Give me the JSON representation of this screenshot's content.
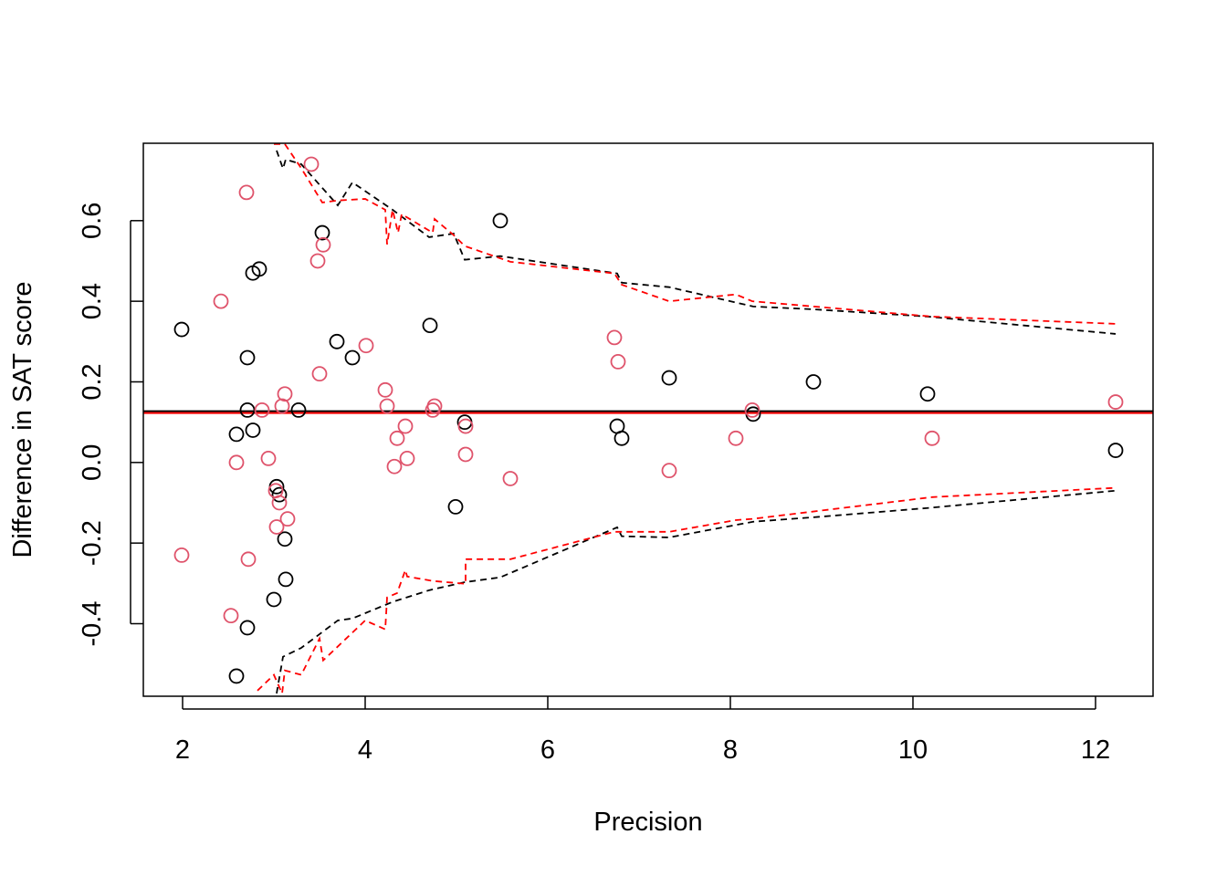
{
  "chart_data": {
    "type": "scatter",
    "xlabel": "Precision",
    "ylabel": "Difference in SAT score",
    "xlim": [
      1.57,
      12.63
    ],
    "ylim": [
      -0.58,
      0.792
    ],
    "xticks": [
      2,
      4,
      6,
      8,
      10,
      12
    ],
    "xtick_labels": [
      "2",
      "4",
      "6",
      "8",
      "10",
      "12"
    ],
    "yticks": [
      -0.4,
      -0.2,
      0.0,
      0.2,
      0.4,
      0.6
    ],
    "ytick_labels": [
      "-0.4",
      "-0.2",
      "0.0",
      "0.2",
      "0.4",
      "0.6"
    ],
    "grid": false,
    "reference_line": {
      "y": 0.125,
      "colors": [
        "#000000",
        "#FF0000"
      ]
    },
    "series": [
      {
        "color": "#000000",
        "marker": "open-circle",
        "points": [
          [
            1.99,
            0.33
          ],
          [
            2.71,
            0.26
          ],
          [
            2.71,
            0.13
          ],
          [
            2.59,
            0.07
          ],
          [
            2.77,
            0.08
          ],
          [
            2.77,
            0.47
          ],
          [
            2.84,
            0.48
          ],
          [
            3.53,
            0.57
          ],
          [
            3.69,
            0.3
          ],
          [
            3.86,
            0.26
          ],
          [
            3.27,
            0.13
          ],
          [
            3.03,
            -0.06
          ],
          [
            3.06,
            -0.08
          ],
          [
            3.12,
            -0.19
          ],
          [
            3.13,
            -0.29
          ],
          [
            3.0,
            -0.34
          ],
          [
            2.71,
            -0.41
          ],
          [
            2.59,
            -0.53
          ],
          [
            4.71,
            0.34
          ],
          [
            5.09,
            0.1
          ],
          [
            4.99,
            -0.11
          ],
          [
            5.48,
            0.6
          ],
          [
            6.76,
            0.09
          ],
          [
            6.81,
            0.06
          ],
          [
            7.33,
            0.21
          ],
          [
            8.25,
            0.12
          ],
          [
            8.91,
            0.2
          ],
          [
            10.16,
            0.17
          ],
          [
            12.22,
            0.03
          ]
        ],
        "funnel_upper": [
          [
            3.03,
            0.774
          ],
          [
            3.1,
            0.729
          ],
          [
            3.13,
            0.752
          ],
          [
            3.3,
            0.74
          ],
          [
            3.7,
            0.638
          ],
          [
            3.86,
            0.695
          ],
          [
            4.3,
            0.627
          ],
          [
            4.7,
            0.559
          ],
          [
            4.97,
            0.568
          ],
          [
            5.09,
            0.503
          ],
          [
            5.48,
            0.512
          ],
          [
            6.76,
            0.469
          ],
          [
            6.81,
            0.446
          ],
          [
            7.33,
            0.435
          ],
          [
            8.25,
            0.387
          ],
          [
            8.91,
            0.38
          ],
          [
            10.16,
            0.362
          ],
          [
            12.22,
            0.319
          ]
        ],
        "funnel_lower": [
          [
            3.03,
            -0.573
          ],
          [
            3.1,
            -0.482
          ],
          [
            3.3,
            -0.46
          ],
          [
            3.7,
            -0.392
          ],
          [
            3.86,
            -0.387
          ],
          [
            4.3,
            -0.346
          ],
          [
            4.7,
            -0.317
          ],
          [
            5.09,
            -0.297
          ],
          [
            5.48,
            -0.285
          ],
          [
            6.76,
            -0.161
          ],
          [
            6.81,
            -0.183
          ],
          [
            7.33,
            -0.186
          ],
          [
            8.25,
            -0.147
          ],
          [
            8.91,
            -0.136
          ],
          [
            10.16,
            -0.113
          ],
          [
            12.22,
            -0.07
          ]
        ]
      },
      {
        "color": "#DF536B",
        "line_color": "#FF0000",
        "marker": "open-circle",
        "points": [
          [
            2.7,
            0.67
          ],
          [
            2.42,
            0.4
          ],
          [
            1.99,
            -0.23
          ],
          [
            2.59,
            0.0
          ],
          [
            2.53,
            -0.38
          ],
          [
            2.72,
            -0.24
          ],
          [
            2.87,
            0.13
          ],
          [
            2.94,
            0.01
          ],
          [
            3.09,
            0.14
          ],
          [
            3.12,
            0.17
          ],
          [
            3.02,
            -0.07
          ],
          [
            3.06,
            -0.1
          ],
          [
            3.03,
            -0.16
          ],
          [
            3.15,
            -0.14
          ],
          [
            3.41,
            0.74
          ],
          [
            3.54,
            0.54
          ],
          [
            3.48,
            0.5
          ],
          [
            3.5,
            0.22
          ],
          [
            4.01,
            0.29
          ],
          [
            4.22,
            0.18
          ],
          [
            4.24,
            0.14
          ],
          [
            4.35,
            0.06
          ],
          [
            4.44,
            0.09
          ],
          [
            4.32,
            -0.01
          ],
          [
            4.46,
            0.01
          ],
          [
            4.74,
            0.13
          ],
          [
            4.76,
            0.14
          ],
          [
            5.1,
            0.09
          ],
          [
            5.1,
            0.02
          ],
          [
            5.59,
            -0.04
          ],
          [
            6.73,
            0.31
          ],
          [
            6.77,
            0.25
          ],
          [
            7.33,
            -0.02
          ],
          [
            8.06,
            0.06
          ],
          [
            8.24,
            0.13
          ],
          [
            10.21,
            0.06
          ],
          [
            12.22,
            0.15
          ]
        ],
        "funnel_upper": [
          [
            3.0,
            0.79
          ],
          [
            3.12,
            0.79
          ],
          [
            3.3,
            0.73
          ],
          [
            3.53,
            0.645
          ],
          [
            3.7,
            0.65
          ],
          [
            4.0,
            0.654
          ],
          [
            4.22,
            0.627
          ],
          [
            4.24,
            0.541
          ],
          [
            4.3,
            0.627
          ],
          [
            4.36,
            0.57
          ],
          [
            4.4,
            0.616
          ],
          [
            4.74,
            0.57
          ],
          [
            4.76,
            0.604
          ],
          [
            4.97,
            0.564
          ],
          [
            5.09,
            0.537
          ],
          [
            5.59,
            0.498
          ],
          [
            6.73,
            0.469
          ],
          [
            6.81,
            0.441
          ],
          [
            7.33,
            0.4
          ],
          [
            8.06,
            0.417
          ],
          [
            8.24,
            0.4
          ],
          [
            10.21,
            0.362
          ],
          [
            12.22,
            0.344
          ]
        ],
        "funnel_lower": [
          [
            2.82,
            -0.566
          ],
          [
            3.0,
            -0.527
          ],
          [
            3.09,
            -0.573
          ],
          [
            3.12,
            -0.516
          ],
          [
            3.3,
            -0.527
          ],
          [
            3.5,
            -0.437
          ],
          [
            3.54,
            -0.491
          ],
          [
            4.0,
            -0.392
          ],
          [
            4.22,
            -0.414
          ],
          [
            4.24,
            -0.335
          ],
          [
            4.35,
            -0.324
          ],
          [
            4.44,
            -0.267
          ],
          [
            4.46,
            -0.283
          ],
          [
            4.74,
            -0.294
          ],
          [
            5.1,
            -0.301
          ],
          [
            5.1,
            -0.24
          ],
          [
            5.59,
            -0.24
          ],
          [
            6.73,
            -0.172
          ],
          [
            7.33,
            -0.172
          ],
          [
            8.06,
            -0.143
          ],
          [
            8.24,
            -0.14
          ],
          [
            10.21,
            -0.086
          ],
          [
            12.22,
            -0.063
          ]
        ]
      }
    ]
  }
}
